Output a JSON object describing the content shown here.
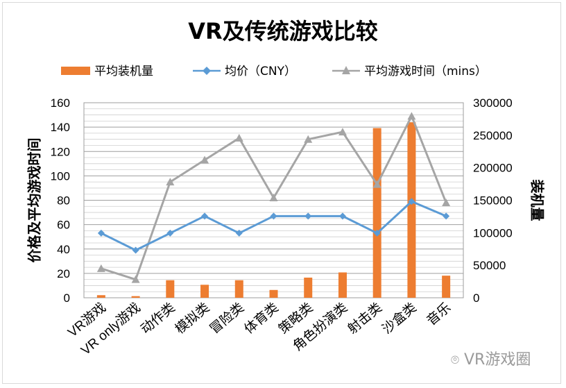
{
  "chart_data": {
    "type": "bar",
    "title": "VR及传统游戏比较",
    "categories": [
      "VR游戏",
      "VR only游戏",
      "动作类",
      "模拟类",
      "冒险类",
      "体育类",
      "策略类",
      "角色扮演类",
      "射击类",
      "沙盒类",
      "音乐"
    ],
    "series": [
      {
        "name": "平均装机量",
        "type": "bar",
        "axis": "right",
        "color": "#ED7D31",
        "values": [
          4000,
          2500,
          27000,
          20000,
          27000,
          12000,
          31000,
          39000,
          261000,
          270000,
          34000
        ]
      },
      {
        "name": "均价（CNY）",
        "type": "line",
        "axis": "left",
        "color": "#5B9BD5",
        "values": [
          53,
          39,
          53,
          67,
          53,
          67,
          67,
          67,
          53,
          79,
          67
        ]
      },
      {
        "name": "平均游戏时间（mins）",
        "type": "line",
        "axis": "left",
        "color": "#A5A5A5",
        "values": [
          24,
          15,
          95,
          113,
          131,
          82,
          130,
          136,
          93,
          149,
          78
        ]
      }
    ],
    "ylabel": "价格及平均游戏时间",
    "y2label": "装机量",
    "ylim": [
      0,
      160
    ],
    "y2lim": [
      0,
      300000
    ],
    "yticks": [
      "0",
      "20",
      "40",
      "60",
      "80",
      "100",
      "120",
      "140",
      "160"
    ],
    "y2ticks": [
      "0",
      "50000",
      "100000",
      "150000",
      "200000",
      "250000",
      "300000"
    ],
    "grid": true,
    "legend_position": "top"
  },
  "watermark": "VR游戏圈"
}
